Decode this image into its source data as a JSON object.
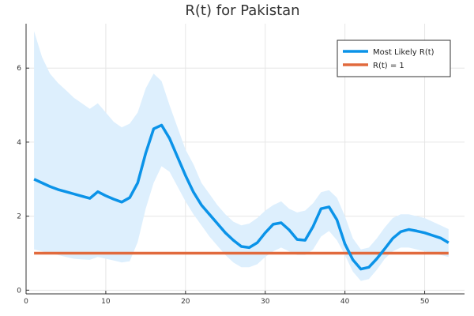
{
  "chart_data": {
    "type": "line",
    "title": "R(t) for Pakistan",
    "xlabel": "",
    "ylabel": "",
    "xlim": [
      0,
      55
    ],
    "ylim": [
      -0.1,
      7.2
    ],
    "xticks": [
      0,
      10,
      20,
      30,
      40,
      50
    ],
    "yticks": [
      0,
      2,
      4,
      6
    ],
    "grid": true,
    "legend_position": "top-right",
    "colors": {
      "r_line": "#0b93e8",
      "band": "#ddeffd",
      "threshold": "#e16a3d"
    },
    "band": {
      "x": [
        1,
        2,
        3,
        4,
        5,
        6,
        7,
        8,
        9,
        10,
        11,
        12,
        13,
        14,
        15,
        16,
        17,
        18,
        19,
        20,
        21,
        22,
        23,
        24,
        25,
        26,
        27,
        28,
        29,
        30,
        31,
        32,
        33,
        34,
        35,
        36,
        37,
        38,
        39,
        40,
        41,
        42,
        43,
        44,
        45,
        46,
        47,
        48,
        49,
        50,
        51,
        52,
        53
      ],
      "upper": [
        7.0,
        6.3,
        5.85,
        5.6,
        5.4,
        5.2,
        5.05,
        4.9,
        5.05,
        4.8,
        4.55,
        4.4,
        4.5,
        4.8,
        5.45,
        5.85,
        5.65,
        5.0,
        4.4,
        3.8,
        3.4,
        2.9,
        2.6,
        2.3,
        2.05,
        1.85,
        1.75,
        1.8,
        1.95,
        2.15,
        2.3,
        2.4,
        2.2,
        2.1,
        2.15,
        2.35,
        2.65,
        2.7,
        2.5,
        2.0,
        1.4,
        1.1,
        1.15,
        1.4,
        1.7,
        1.95,
        2.05,
        2.05,
        2.0,
        1.95,
        1.85,
        1.75,
        1.65
      ],
      "lower": [
        1.1,
        1.05,
        1.0,
        0.95,
        0.9,
        0.85,
        0.83,
        0.82,
        0.9,
        0.85,
        0.8,
        0.75,
        0.78,
        1.3,
        2.2,
        2.9,
        3.35,
        3.2,
        2.8,
        2.4,
        2.05,
        1.75,
        1.45,
        1.2,
        0.95,
        0.75,
        0.62,
        0.62,
        0.7,
        0.9,
        1.05,
        1.15,
        1.05,
        0.95,
        0.95,
        1.1,
        1.45,
        1.6,
        1.35,
        0.95,
        0.5,
        0.25,
        0.3,
        0.55,
        0.85,
        1.05,
        1.15,
        1.15,
        1.1,
        1.05,
        1.0,
        0.95,
        0.9
      ]
    },
    "series": [
      {
        "name": "Most Likely R(t)",
        "x": [
          1,
          2,
          3,
          4,
          5,
          6,
          7,
          8,
          9,
          10,
          11,
          12,
          13,
          14,
          15,
          16,
          17,
          18,
          19,
          20,
          21,
          22,
          23,
          24,
          25,
          26,
          27,
          28,
          29,
          30,
          31,
          32,
          33,
          34,
          35,
          36,
          37,
          38,
          39,
          40,
          41,
          42,
          43,
          44,
          45,
          46,
          47,
          48,
          49,
          50,
          51,
          52,
          53
        ],
        "values": [
          3.0,
          2.9,
          2.8,
          2.72,
          2.66,
          2.6,
          2.54,
          2.48,
          2.66,
          2.55,
          2.46,
          2.38,
          2.5,
          2.9,
          3.7,
          4.36,
          4.46,
          4.1,
          3.6,
          3.1,
          2.65,
          2.3,
          2.05,
          1.8,
          1.55,
          1.35,
          1.18,
          1.15,
          1.28,
          1.55,
          1.78,
          1.82,
          1.63,
          1.37,
          1.35,
          1.72,
          2.2,
          2.25,
          1.9,
          1.25,
          0.82,
          0.57,
          0.62,
          0.85,
          1.12,
          1.4,
          1.58,
          1.64,
          1.6,
          1.55,
          1.48,
          1.41,
          1.28
        ]
      },
      {
        "name": "R(t) = 1",
        "x": [
          1,
          53
        ],
        "values": [
          1,
          1
        ]
      }
    ]
  }
}
